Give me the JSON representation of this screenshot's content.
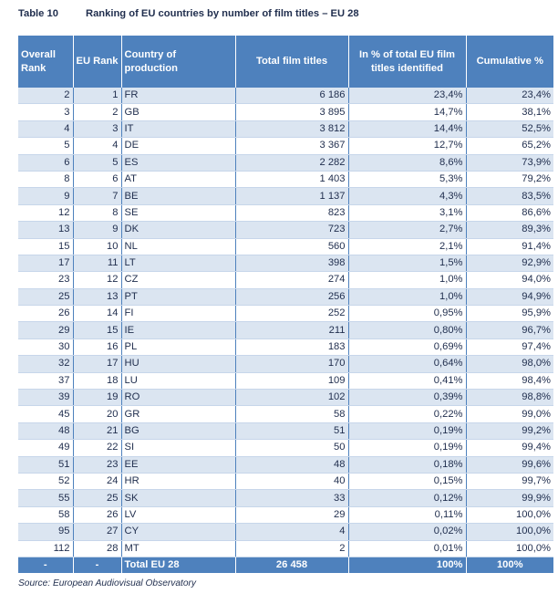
{
  "caption": {
    "number": "Table 10",
    "title": "Ranking of EU countries by number of film titles – EU 28"
  },
  "headers": {
    "overall_rank": "Overall Rank",
    "eu_rank": "EU Rank",
    "country": "Country of production",
    "total_titles": "Total film titles",
    "pct_total": "In % of total EU film titles identified",
    "cumulative": "Cumulative %"
  },
  "rows": [
    {
      "overall": "2",
      "eu": "1",
      "country": "FR",
      "titles": "6 186",
      "pct": "23,4%",
      "cum": "23,4%"
    },
    {
      "overall": "3",
      "eu": "2",
      "country": "GB",
      "titles": "3 895",
      "pct": "14,7%",
      "cum": "38,1%"
    },
    {
      "overall": "4",
      "eu": "3",
      "country": "IT",
      "titles": "3 812",
      "pct": "14,4%",
      "cum": "52,5%"
    },
    {
      "overall": "5",
      "eu": "4",
      "country": "DE",
      "titles": "3 367",
      "pct": "12,7%",
      "cum": "65,2%"
    },
    {
      "overall": "6",
      "eu": "5",
      "country": "ES",
      "titles": "2 282",
      "pct": "8,6%",
      "cum": "73,9%"
    },
    {
      "overall": "8",
      "eu": "6",
      "country": "AT",
      "titles": "1 403",
      "pct": "5,3%",
      "cum": "79,2%"
    },
    {
      "overall": "9",
      "eu": "7",
      "country": "BE",
      "titles": "1 137",
      "pct": "4,3%",
      "cum": "83,5%"
    },
    {
      "overall": "12",
      "eu": "8",
      "country": "SE",
      "titles": "823",
      "pct": "3,1%",
      "cum": "86,6%"
    },
    {
      "overall": "13",
      "eu": "9",
      "country": "DK",
      "titles": "723",
      "pct": "2,7%",
      "cum": "89,3%"
    },
    {
      "overall": "15",
      "eu": "10",
      "country": "NL",
      "titles": "560",
      "pct": "2,1%",
      "cum": "91,4%"
    },
    {
      "overall": "17",
      "eu": "11",
      "country": "LT",
      "titles": "398",
      "pct": "1,5%",
      "cum": "92,9%"
    },
    {
      "overall": "23",
      "eu": "12",
      "country": "CZ",
      "titles": "274",
      "pct": "1,0%",
      "cum": "94,0%"
    },
    {
      "overall": "25",
      "eu": "13",
      "country": "PT",
      "titles": "256",
      "pct": "1,0%",
      "cum": "94,9%"
    },
    {
      "overall": "26",
      "eu": "14",
      "country": "FI",
      "titles": "252",
      "pct": "0,95%",
      "cum": "95,9%"
    },
    {
      "overall": "29",
      "eu": "15",
      "country": "IE",
      "titles": "211",
      "pct": "0,80%",
      "cum": "96,7%"
    },
    {
      "overall": "30",
      "eu": "16",
      "country": "PL",
      "titles": "183",
      "pct": "0,69%",
      "cum": "97,4%"
    },
    {
      "overall": "32",
      "eu": "17",
      "country": "HU",
      "titles": "170",
      "pct": "0,64%",
      "cum": "98,0%"
    },
    {
      "overall": "37",
      "eu": "18",
      "country": "LU",
      "titles": "109",
      "pct": "0,41%",
      "cum": "98,4%"
    },
    {
      "overall": "39",
      "eu": "19",
      "country": "RO",
      "titles": "102",
      "pct": "0,39%",
      "cum": "98,8%"
    },
    {
      "overall": "45",
      "eu": "20",
      "country": "GR",
      "titles": "58",
      "pct": "0,22%",
      "cum": "99,0%"
    },
    {
      "overall": "48",
      "eu": "21",
      "country": "BG",
      "titles": "51",
      "pct": "0,19%",
      "cum": "99,2%"
    },
    {
      "overall": "49",
      "eu": "22",
      "country": "SI",
      "titles": "50",
      "pct": "0,19%",
      "cum": "99,4%"
    },
    {
      "overall": "51",
      "eu": "23",
      "country": "EE",
      "titles": "48",
      "pct": "0,18%",
      "cum": "99,6%"
    },
    {
      "overall": "52",
      "eu": "24",
      "country": "HR",
      "titles": "40",
      "pct": "0,15%",
      "cum": "99,7%"
    },
    {
      "overall": "55",
      "eu": "25",
      "country": "SK",
      "titles": "33",
      "pct": "0,12%",
      "cum": "99,9%"
    },
    {
      "overall": "58",
      "eu": "26",
      "country": "LV",
      "titles": "29",
      "pct": "0,11%",
      "cum": "100,0%"
    },
    {
      "overall": "95",
      "eu": "27",
      "country": "CY",
      "titles": "4",
      "pct": "0,02%",
      "cum": "100,0%"
    },
    {
      "overall": "112",
      "eu": "28",
      "country": "MT",
      "titles": "2",
      "pct": "0,01%",
      "cum": "100,0%"
    }
  ],
  "total": {
    "overall": "-",
    "eu": "-",
    "country": "Total EU 28",
    "titles": "26 458",
    "pct": "100%",
    "cum": "100%"
  },
  "source": "Source: European Audiovisual Observatory",
  "colors": {
    "header_bg": "#4e81bd",
    "stripe_bg": "#dbe5f1",
    "text": "#1f2d4d"
  }
}
